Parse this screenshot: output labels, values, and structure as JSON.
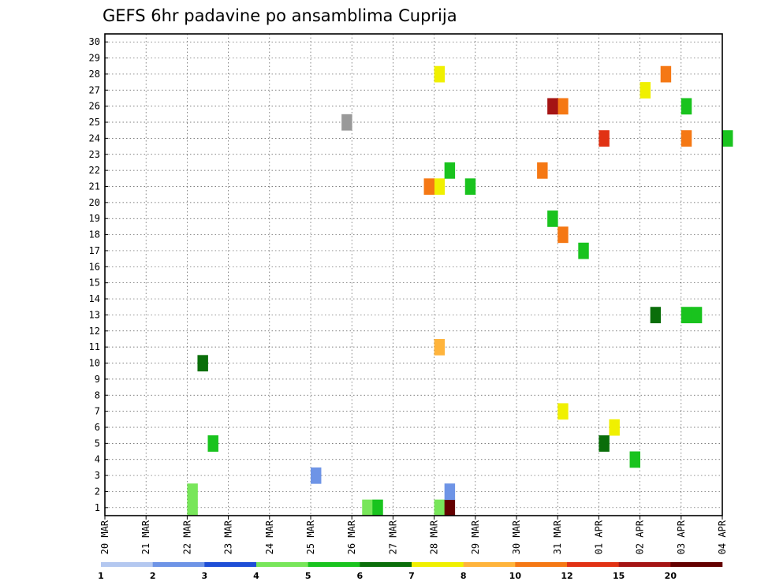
{
  "chart_data": {
    "type": "heatmap",
    "title": "GEFS 6hr padavine po ansamblima Cuprija",
    "xlabel": "",
    "ylabel": "",
    "x_tick_labels": [
      "20 MAR",
      "21 MAR",
      "22 MAR",
      "23 MAR",
      "24 MAR",
      "25 MAR",
      "26 MAR",
      "27 MAR",
      "28 MAR",
      "29 MAR",
      "30 MAR",
      "31 MAR",
      "01 APR",
      "02 APR",
      "03 APR",
      "04 APR"
    ],
    "y_tick_labels": [
      "1",
      "2",
      "3",
      "4",
      "5",
      "6",
      "7",
      "8",
      "9",
      "10",
      "11",
      "12",
      "13",
      "14",
      "15",
      "16",
      "17",
      "18",
      "19",
      "20",
      "21",
      "22",
      "23",
      "24",
      "25",
      "26",
      "27",
      "28",
      "29",
      "30"
    ],
    "x_range": [
      "20 MAR",
      "04 APR"
    ],
    "y_range": [
      1,
      30
    ],
    "time_step_hours": 6,
    "grid": true,
    "colorbar": {
      "position": "bottom",
      "tick_labels": [
        "1",
        "2",
        "3",
        "4",
        "5",
        "6",
        "7",
        "8",
        "10",
        "12",
        "15",
        "20"
      ],
      "colors": [
        "#b4c8f0",
        "#6e94e6",
        "#1e4ed6",
        "#78e65a",
        "#19c31e",
        "#0a6e0a",
        "#f0f000",
        "#ffb43c",
        "#f57814",
        "#e13214",
        "#a51414",
        "#640000"
      ]
    },
    "cells": [
      {
        "day": "22 MAR",
        "hour": 0,
        "member": 1,
        "level": 3
      },
      {
        "day": "22 MAR",
        "hour": 0,
        "member": 2,
        "level": 3
      },
      {
        "day": "25 MAR",
        "hour": 0,
        "member": 3,
        "level": 1
      },
      {
        "day": "26 MAR",
        "hour": 6,
        "member": 1,
        "level": 3
      },
      {
        "day": "26 MAR",
        "hour": 12,
        "member": 1,
        "level": 4
      },
      {
        "day": "28 MAR",
        "hour": 0,
        "member": 1,
        "level": 3
      },
      {
        "day": "28 MAR",
        "hour": 6,
        "member": 1,
        "level": 11
      },
      {
        "day": "28 MAR",
        "hour": 6,
        "member": 2,
        "level": 1
      },
      {
        "day": "31 MAR",
        "hour": 0,
        "member": 7,
        "level": 6
      },
      {
        "day": "01 APR",
        "hour": 6,
        "member": 6,
        "level": 6
      },
      {
        "day": "02 APR",
        "hour": 0,
        "member": 27,
        "level": 6
      },
      {
        "day": "25 MAR",
        "hour": 18,
        "member": 25,
        "level": 12
      },
      {
        "day": "28 MAR",
        "hour": 0,
        "member": 21,
        "level": 6
      },
      {
        "day": "28 MAR",
        "hour": 0,
        "member": 28,
        "level": 6
      },
      {
        "day": "28 MAR",
        "hour": 0,
        "member": 11,
        "level": 7
      },
      {
        "day": "27 MAR",
        "hour": 18,
        "member": 21,
        "level": 8
      },
      {
        "day": "30 MAR",
        "hour": 12,
        "member": 22,
        "level": 8
      },
      {
        "day": "31 MAR",
        "hour": 0,
        "member": 26,
        "level": 8
      },
      {
        "day": "31 MAR",
        "hour": 0,
        "member": 18,
        "level": 8
      },
      {
        "day": "01 APR",
        "hour": 0,
        "member": 24,
        "level": 9
      },
      {
        "day": "30 MAR",
        "hour": 18,
        "member": 26,
        "level": 10
      },
      {
        "day": "02 APR",
        "hour": 12,
        "member": 28,
        "level": 8
      },
      {
        "day": "03 APR",
        "hour": 0,
        "member": 24,
        "level": 8
      },
      {
        "day": "22 MAR",
        "hour": 12,
        "member": 5,
        "level": 4
      },
      {
        "day": "22 MAR",
        "hour": 6,
        "member": 10,
        "level": 5
      },
      {
        "day": "02 APR",
        "hour": 6,
        "member": 13,
        "level": 5
      },
      {
        "day": "03 APR",
        "hour": 0,
        "member": 13,
        "level": 4
      },
      {
        "day": "03 APR",
        "hour": 6,
        "member": 13,
        "level": 4
      },
      {
        "day": "03 APR",
        "hour": 0,
        "member": 26,
        "level": 4
      },
      {
        "day": "28 MAR",
        "hour": 18,
        "member": 21,
        "level": 4
      },
      {
        "day": "28 MAR",
        "hour": 6,
        "member": 22,
        "level": 4
      },
      {
        "day": "31 MAR",
        "hour": 12,
        "member": 17,
        "level": 4
      },
      {
        "day": "30 MAR",
        "hour": 18,
        "member": 19,
        "level": 4
      },
      {
        "day": "01 APR",
        "hour": 18,
        "member": 4,
        "level": 4
      },
      {
        "day": "01 APR",
        "hour": 0,
        "member": 5,
        "level": 5
      },
      {
        "day": "04 APR",
        "hour": 0,
        "member": 24,
        "level": 4
      }
    ]
  }
}
